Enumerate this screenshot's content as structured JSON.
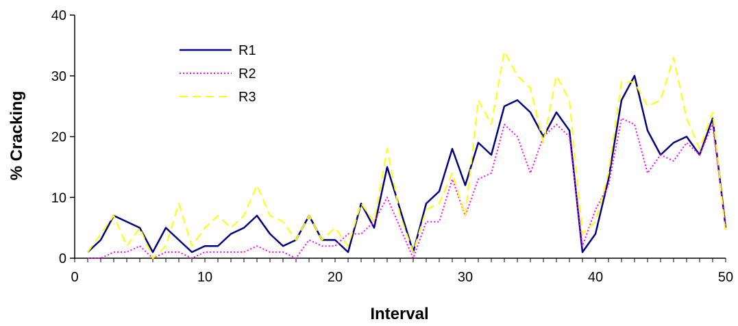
{
  "chart_data": {
    "type": "line",
    "xlabel": "Interval",
    "ylabel": "% Cracking",
    "xlim": [
      0,
      50
    ],
    "ylim": [
      0,
      40
    ],
    "xticks": [
      0,
      10,
      20,
      30,
      40,
      50
    ],
    "yticks": [
      0,
      10,
      20,
      30,
      40
    ],
    "grid": false,
    "legend_position": "upper-left",
    "x": [
      1,
      2,
      3,
      4,
      5,
      6,
      7,
      8,
      9,
      10,
      11,
      12,
      13,
      14,
      15,
      16,
      17,
      18,
      19,
      20,
      21,
      22,
      23,
      24,
      25,
      26,
      27,
      28,
      29,
      30,
      31,
      32,
      33,
      34,
      35,
      36,
      37,
      38,
      39,
      40,
      41,
      42,
      43,
      44,
      45,
      46,
      47,
      48,
      49,
      50
    ],
    "series": [
      {
        "name": "R1",
        "color": "#000080",
        "style": "solid",
        "values": [
          1,
          3,
          7,
          6,
          5,
          1,
          5,
          3,
          1,
          2,
          2,
          4,
          5,
          7,
          4,
          2,
          3,
          7,
          3,
          3,
          1,
          9,
          5,
          15,
          8,
          1,
          9,
          11,
          18,
          12,
          19,
          17,
          25,
          26,
          24,
          20,
          24,
          21,
          1,
          4,
          13,
          26,
          30,
          21,
          17,
          19,
          20,
          17,
          23,
          5
        ]
      },
      {
        "name": "R2",
        "color": "#ff00ff",
        "style": "dotted",
        "values": [
          0,
          0,
          1,
          1,
          2,
          0,
          1,
          1,
          0,
          1,
          1,
          1,
          1,
          2,
          1,
          1,
          0,
          3,
          2,
          2,
          4,
          4,
          6,
          10,
          5,
          0,
          6,
          6,
          13,
          7,
          13,
          14,
          22,
          20,
          14,
          20,
          22,
          20,
          2,
          8,
          12,
          23,
          22,
          14,
          17,
          16,
          19,
          17,
          22,
          5
        ]
      },
      {
        "name": "R3",
        "color": "#ffff00",
        "style": "dashed",
        "values": [
          1,
          4,
          7,
          2,
          5,
          0,
          2,
          9,
          2,
          5,
          7,
          5,
          7,
          12,
          7,
          6,
          3,
          7,
          3,
          5,
          2,
          9,
          6,
          18,
          7,
          1,
          8,
          9,
          14,
          7,
          26,
          22,
          34,
          30,
          28,
          19,
          30,
          26,
          4,
          6,
          14,
          29,
          29,
          25,
          26,
          33,
          23,
          18,
          24,
          4
        ]
      }
    ]
  }
}
